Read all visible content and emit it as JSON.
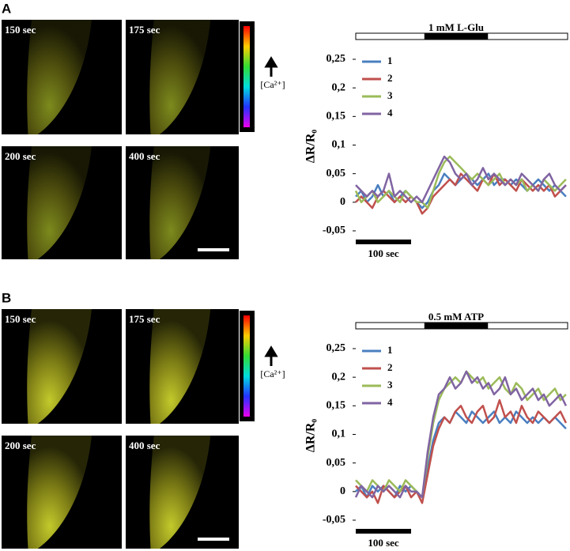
{
  "panels": [
    {
      "letter": "A",
      "tiles": [
        "150 sec",
        "175 sec",
        "200 sec",
        "400 sec"
      ],
      "colorbar_label": "[Ca²⁺]"
    },
    {
      "letter": "B",
      "tiles": [
        "150 sec",
        "175 sec",
        "200 sec",
        "400 sec"
      ],
      "colorbar_label": "[Ca²⁺]"
    }
  ],
  "chart_data": [
    {
      "type": "line",
      "y_label": "ΔR/R₀",
      "treatment": {
        "label": "1 mM L-Glu",
        "start": 124,
        "end": 239
      },
      "scale_bar": {
        "label": "100 sec",
        "length": 100
      },
      "x": [
        0,
        10,
        20,
        30,
        40,
        50,
        60,
        70,
        80,
        90,
        100,
        110,
        120,
        130,
        140,
        150,
        160,
        170,
        180,
        190,
        200,
        210,
        220,
        230,
        240,
        250,
        260,
        270,
        280,
        290,
        300,
        310,
        320,
        330,
        340,
        350,
        360,
        370,
        380
      ],
      "xlim": [
        0,
        383
      ],
      "ylim": [
        -0.05,
        0.25
      ],
      "yticks": [
        {
          "value": 0.25,
          "label": "0,25"
        },
        {
          "value": 0.2,
          "label": "0,2"
        },
        {
          "value": 0.15,
          "label": "0,15"
        },
        {
          "value": 0.1,
          "label": "0,1"
        },
        {
          "value": 0.05,
          "label": "0,05"
        },
        0,
        {
          "value": -0.05,
          "label": "-0,05"
        }
      ],
      "series": [
        {
          "name": "1",
          "color": "#4a7fc0",
          "values": [
            0.01,
            0.02,
            0.0,
            0.01,
            0.03,
            0.01,
            0.02,
            0.0,
            0.01,
            0.02,
            0.01,
            0.0,
            -0.01,
            0.0,
            0.02,
            0.03,
            0.05,
            0.04,
            0.03,
            0.04,
            0.05,
            0.04,
            0.03,
            0.04,
            0.05,
            0.03,
            0.04,
            0.04,
            0.03,
            0.04,
            0.03,
            0.02,
            0.03,
            0.04,
            0.03,
            0.02,
            0.03,
            0.02,
            0.01
          ]
        },
        {
          "name": "2",
          "color": "#c0504d",
          "values": [
            0.0,
            0.01,
            0.0,
            -0.01,
            0.01,
            0.02,
            0.01,
            0.0,
            0.01,
            0.0,
            0.01,
            0.0,
            -0.02,
            -0.01,
            0.01,
            0.02,
            0.03,
            0.04,
            0.03,
            0.05,
            0.04,
            0.03,
            0.02,
            0.04,
            0.03,
            0.05,
            0.03,
            0.04,
            0.03,
            0.02,
            0.04,
            0.03,
            0.02,
            0.03,
            0.02,
            0.03,
            0.01,
            0.02,
            0.03
          ]
        },
        {
          "name": "3",
          "color": "#9bbb59",
          "values": [
            0.02,
            0.0,
            0.01,
            0.02,
            0.0,
            0.01,
            0.02,
            0.01,
            0.0,
            0.02,
            0.01,
            0.0,
            0.0,
            -0.01,
            0.02,
            0.05,
            0.07,
            0.08,
            0.07,
            0.06,
            0.05,
            0.04,
            0.05,
            0.04,
            0.03,
            0.04,
            0.05,
            0.03,
            0.04,
            0.03,
            0.04,
            0.02,
            0.03,
            0.02,
            0.04,
            0.03,
            0.02,
            0.03,
            0.04
          ]
        },
        {
          "name": "4",
          "color": "#8064a2",
          "values": [
            0.03,
            0.02,
            0.01,
            0.02,
            0.01,
            0.02,
            0.05,
            0.01,
            0.02,
            0.01,
            0.0,
            0.01,
            0.0,
            0.02,
            0.04,
            0.06,
            0.08,
            0.07,
            0.05,
            0.04,
            0.05,
            0.03,
            0.04,
            0.06,
            0.04,
            0.05,
            0.04,
            0.03,
            0.04,
            0.03,
            0.05,
            0.04,
            0.03,
            0.02,
            0.04,
            0.05,
            0.03,
            0.02,
            0.03
          ]
        }
      ]
    },
    {
      "type": "line",
      "y_label": "ΔR/R₀",
      "treatment": {
        "label": "0.5 mM ATP",
        "start": 124,
        "end": 239
      },
      "scale_bar": {
        "label": "100 sec",
        "length": 100
      },
      "x": [
        0,
        10,
        20,
        30,
        40,
        50,
        60,
        70,
        80,
        90,
        100,
        110,
        120,
        130,
        140,
        150,
        160,
        170,
        180,
        190,
        200,
        210,
        220,
        230,
        240,
        250,
        260,
        270,
        280,
        290,
        300,
        310,
        320,
        330,
        340,
        350,
        360,
        370,
        380
      ],
      "xlim": [
        0,
        383
      ],
      "ylim": [
        -0.05,
        0.25
      ],
      "yticks": [
        {
          "value": 0.25,
          "label": "0,25"
        },
        {
          "value": 0.2,
          "label": "0,2"
        },
        {
          "value": 0.15,
          "label": "0,15"
        },
        {
          "value": 0.1,
          "label": "0,1"
        },
        {
          "value": 0.05,
          "label": "0,05"
        },
        0,
        {
          "value": -0.05,
          "label": "-0,05"
        }
      ],
      "series": [
        {
          "name": "1",
          "color": "#4a7fc0",
          "values": [
            0.0,
            0.01,
            -0.01,
            0.01,
            0.0,
            0.01,
            0.0,
            -0.01,
            0.01,
            0.0,
            0.01,
            0.0,
            -0.01,
            0.04,
            0.09,
            0.12,
            0.13,
            0.12,
            0.14,
            0.13,
            0.12,
            0.14,
            0.13,
            0.12,
            0.13,
            0.14,
            0.12,
            0.13,
            0.12,
            0.14,
            0.13,
            0.12,
            0.13,
            0.12,
            0.13,
            0.12,
            0.13,
            0.12,
            0.11
          ]
        },
        {
          "name": "2",
          "color": "#c0504d",
          "values": [
            0.01,
            0.0,
            -0.01,
            0.0,
            -0.02,
            0.01,
            0.0,
            -0.01,
            0.0,
            0.01,
            -0.01,
            0.0,
            -0.02,
            0.03,
            0.08,
            0.11,
            0.13,
            0.12,
            0.14,
            0.15,
            0.13,
            0.12,
            0.14,
            0.15,
            0.12,
            0.13,
            0.16,
            0.13,
            0.14,
            0.12,
            0.15,
            0.13,
            0.12,
            0.14,
            0.13,
            0.12,
            0.13,
            0.14,
            0.12
          ]
        },
        {
          "name": "3",
          "color": "#9bbb59",
          "values": [
            0.02,
            0.01,
            0.0,
            0.02,
            0.01,
            0.0,
            0.02,
            0.01,
            0.0,
            0.02,
            0.01,
            0.0,
            -0.01,
            0.06,
            0.12,
            0.16,
            0.18,
            0.19,
            0.2,
            0.19,
            0.21,
            0.2,
            0.19,
            0.2,
            0.18,
            0.19,
            0.2,
            0.18,
            0.17,
            0.19,
            0.18,
            0.16,
            0.17,
            0.18,
            0.16,
            0.17,
            0.18,
            0.16,
            0.17
          ]
        },
        {
          "name": "4",
          "color": "#8064a2",
          "values": [
            -0.01,
            0.01,
            0.0,
            -0.01,
            0.01,
            0.0,
            0.01,
            0.0,
            -0.01,
            0.01,
            0.0,
            0.0,
            -0.01,
            0.07,
            0.13,
            0.17,
            0.18,
            0.2,
            0.18,
            0.19,
            0.21,
            0.19,
            0.2,
            0.18,
            0.19,
            0.17,
            0.18,
            0.2,
            0.17,
            0.18,
            0.16,
            0.17,
            0.18,
            0.16,
            0.17,
            0.15,
            0.16,
            0.17,
            0.15
          ]
        }
      ]
    }
  ]
}
